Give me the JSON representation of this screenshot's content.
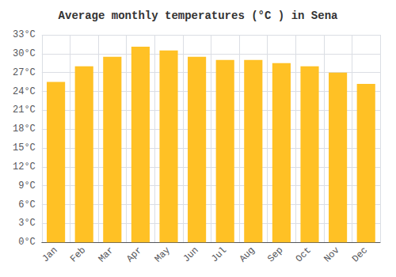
{
  "chart_data": {
    "type": "bar",
    "title": "Average monthly temperatures (°C ) in Sena",
    "categories": [
      "Jan",
      "Feb",
      "Mar",
      "Apr",
      "May",
      "Jun",
      "Jul",
      "Aug",
      "Sep",
      "Oct",
      "Nov",
      "Dec"
    ],
    "values": [
      25.5,
      28.0,
      29.5,
      31.1,
      30.5,
      29.5,
      29.0,
      29.0,
      28.5,
      28.0,
      27.0,
      25.2
    ],
    "color": "#FFC125",
    "ylim": [
      0,
      33
    ],
    "yticks": [
      {
        "value": 0,
        "label": "0°C"
      },
      {
        "value": 3,
        "label": "3°C"
      },
      {
        "value": 6,
        "label": "6°C"
      },
      {
        "value": 9,
        "label": "9°C"
      },
      {
        "value": 12,
        "label": "12°C"
      },
      {
        "value": 15,
        "label": "15°C"
      },
      {
        "value": 18,
        "label": "18°C"
      },
      {
        "value": 21,
        "label": "21°C"
      },
      {
        "value": 24,
        "label": "24°C"
      },
      {
        "value": 27,
        "label": "27°C"
      },
      {
        "value": 30,
        "label": "30°C"
      },
      {
        "value": 33,
        "label": "33°C"
      }
    ],
    "grid": true
  }
}
